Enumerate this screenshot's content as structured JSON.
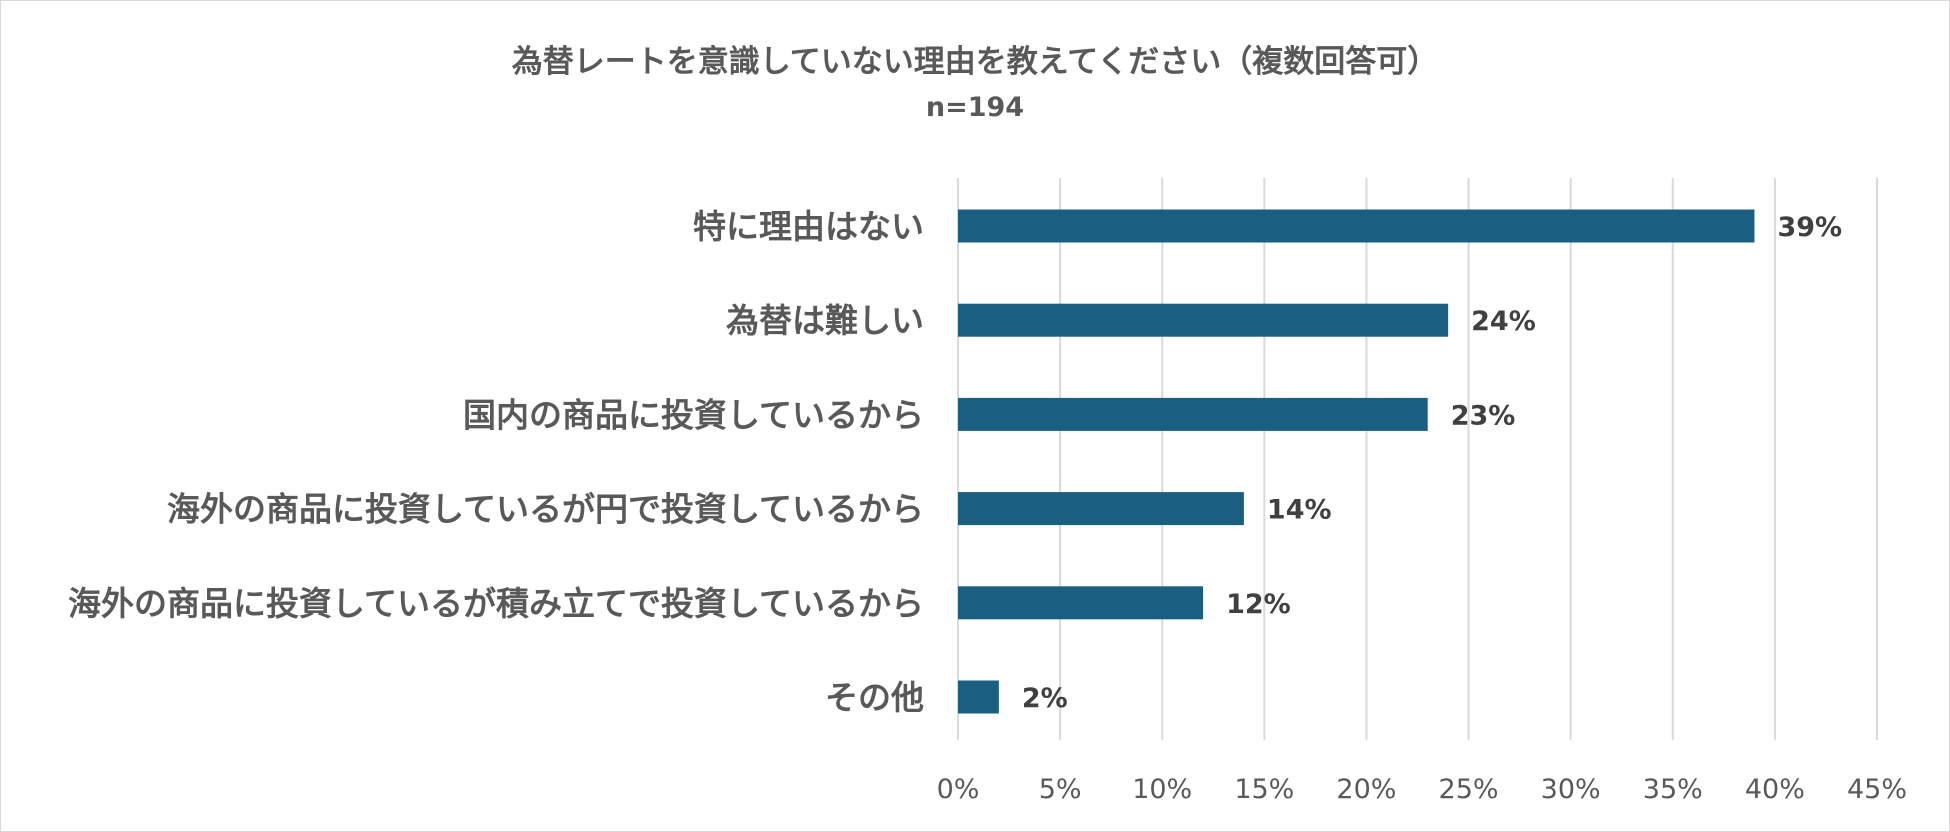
{
  "chart_data": {
    "type": "bar",
    "orientation": "horizontal",
    "title": "為替レートを意識していない理由を教えてください（複数回答可）",
    "subtitle": "n=194",
    "categories": [
      "特に理由はない",
      "為替は難しい",
      "国内の商品に投資しているから",
      "海外の商品に投資しているが円で投資しているから",
      "海外の商品に投資しているが積み立てで投資しているから",
      "その他"
    ],
    "values": [
      39,
      24,
      23,
      14,
      12,
      2
    ],
    "value_labels": [
      "39%",
      "24%",
      "23%",
      "14%",
      "12%",
      "2%"
    ],
    "x_ticks": [
      0,
      5,
      10,
      15,
      20,
      25,
      30,
      35,
      40,
      45
    ],
    "x_tick_labels": [
      "0%",
      "5%",
      "10%",
      "15%",
      "20%",
      "25%",
      "30%",
      "35%",
      "40%",
      "45%"
    ],
    "xlim": [
      0,
      45
    ],
    "grid": "vertical",
    "legend": "none",
    "bar_color": "#1a5e82"
  }
}
